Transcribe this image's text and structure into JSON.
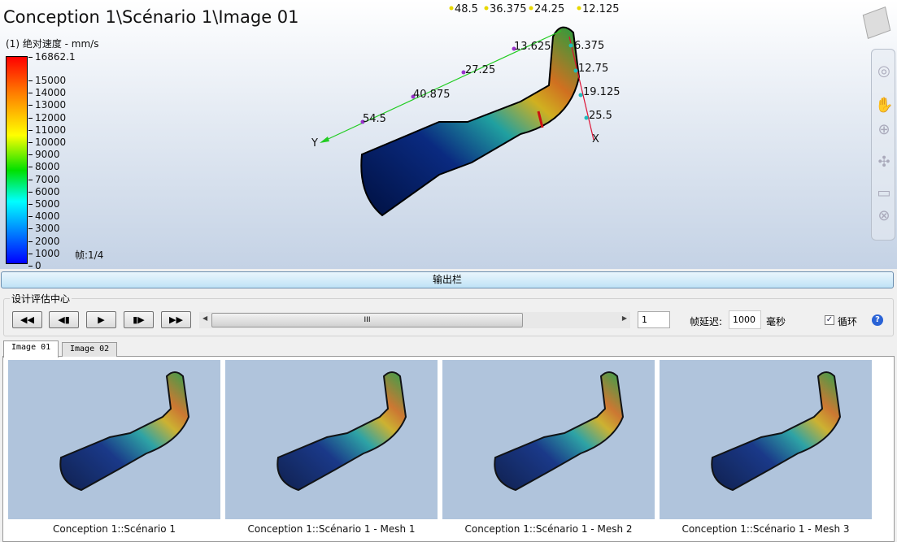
{
  "viewport": {
    "title": "Conception 1\\Scénario 1\\Image 01",
    "legend_title": "(1) 绝对速度 - mm/s",
    "legend_max": "16862.1",
    "legend_ticks": [
      "15000",
      "14000",
      "13000",
      "12000",
      "11000",
      "10000",
      "9000",
      "8000",
      "7000",
      "6000",
      "5000",
      "4000",
      "3000",
      "2000",
      "1000",
      "0"
    ],
    "frame": "帧:1/4",
    "axes": {
      "y_label": "Y",
      "x_label": "X",
      "y_ticks": [
        "13.625",
        "27.25",
        "40.875",
        "54.5"
      ],
      "x_ticks": [
        "6.375",
        "12.75",
        "19.125",
        "25.5"
      ],
      "z_ticks": [
        "48.5",
        "36.375",
        "24.25",
        "12.125"
      ]
    },
    "colors": {
      "y_axis": "#22cc22",
      "x_axis": "#dd1133",
      "z_axis": "#e8d800"
    }
  },
  "navbar": {
    "icons": [
      "orbit-icon",
      "pan-hand-icon",
      "zoom-icon",
      "rotate-icon",
      "view-icon",
      "close-icon"
    ]
  },
  "output_bar": {
    "label": "输出栏"
  },
  "design_center": {
    "label": "设计评估中心",
    "buttons": [
      "◀◀",
      "◀▮",
      "▶",
      "▮▶",
      "▶▶"
    ],
    "slider_grip": "III",
    "frame_value": "1",
    "delay_label": "帧延迟:",
    "delay_value": "1000",
    "delay_unit": "毫秒",
    "loop_label": "循环",
    "loop_checked": true
  },
  "tabs": [
    {
      "label": "Image 01",
      "active": true
    },
    {
      "label": "Image 02",
      "active": false
    }
  ],
  "thumbnails": [
    {
      "caption": "Conception 1::Scénario 1"
    },
    {
      "caption": "Conception 1::Scénario 1 - Mesh 1"
    },
    {
      "caption": "Conception 1::Scénario 1 - Mesh 2"
    },
    {
      "caption": "Conception 1::Scénario 1 - Mesh 3"
    }
  ]
}
